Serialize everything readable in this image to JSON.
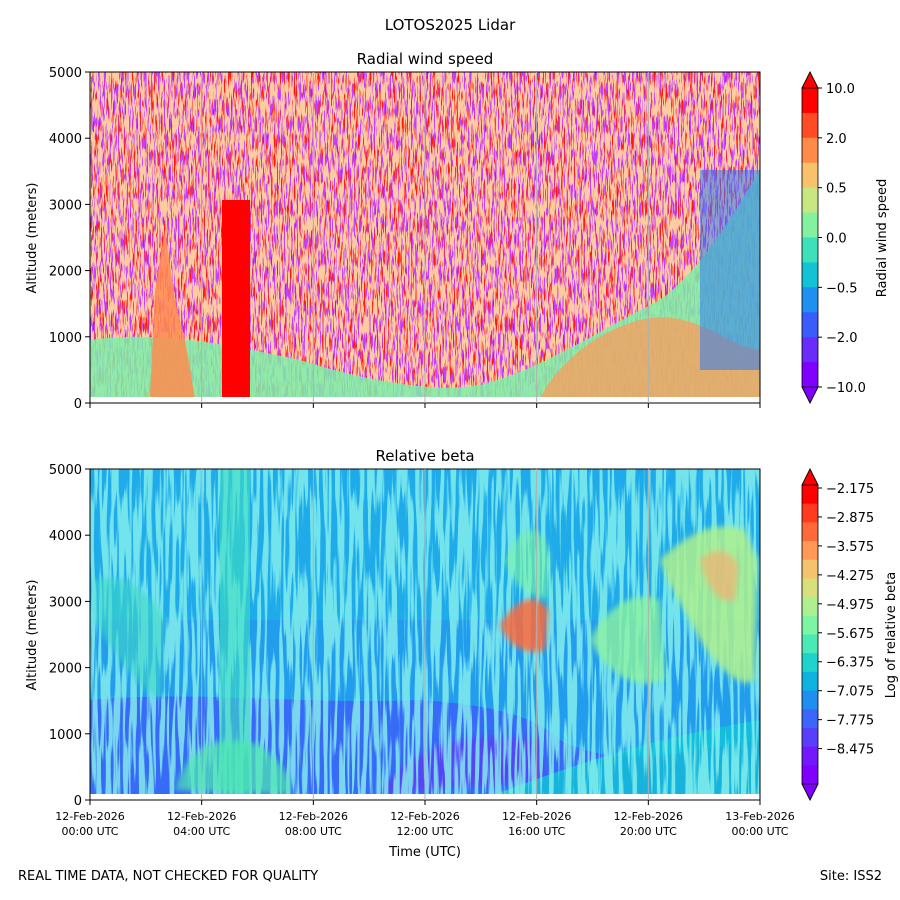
{
  "suptitle": "LOTOS2025 Lidar",
  "footer": {
    "left": "REAL TIME DATA, NOT CHECKED FOR QUALITY",
    "right": "Site: ISS2"
  },
  "chart_data": [
    {
      "type": "heatmap",
      "title": "Radial wind speed",
      "ylabel": "Altitude (meters)",
      "xlabel": "",
      "ylim": [
        0,
        5000
      ],
      "yticks": [
        0,
        1000,
        2000,
        3000,
        4000,
        5000
      ],
      "xlim_hours": [
        0,
        24
      ],
      "xticks_hours": [
        0,
        4,
        8,
        12,
        16,
        20,
        24
      ],
      "xtick_labels_shown": false,
      "colorbar": {
        "label": "Radial wind speed",
        "tick_labels": [
          "10.0",
          "2.0",
          "0.5",
          "0.0",
          "−0.5",
          "−2.0",
          "−10.0"
        ],
        "levels_top_to_bottom": [
          "#ff0000",
          "#ff4b26",
          "#ff8a4a",
          "#f7c26b",
          "#c8e682",
          "#83f1a0",
          "#3de0b8",
          "#14c2d6",
          "#1e90f0",
          "#3a5cf9",
          "#6a2cf9",
          "#8000ff"
        ]
      },
      "description_regions": [
        {
          "name": "noisy-high-values",
          "value": "mostly > 2.0"
        },
        {
          "name": "low-level-layer",
          "value": "-0.5 to 0.5"
        }
      ]
    },
    {
      "type": "heatmap",
      "title": "Relative beta",
      "ylabel": "Altitude (meters)",
      "xlabel": "Time (UTC)",
      "ylim": [
        0,
        5000
      ],
      "yticks": [
        0,
        1000,
        2000,
        3000,
        4000,
        5000
      ],
      "xlim_hours": [
        0,
        24
      ],
      "xticks_hours": [
        0,
        4,
        8,
        12,
        16,
        20,
        24
      ],
      "xtick_labels": [
        [
          "12-Feb-2026",
          "00:00 UTC"
        ],
        [
          "12-Feb-2026",
          "04:00 UTC"
        ],
        [
          "12-Feb-2026",
          "08:00 UTC"
        ],
        [
          "12-Feb-2026",
          "12:00 UTC"
        ],
        [
          "12-Feb-2026",
          "16:00 UTC"
        ],
        [
          "12-Feb-2026",
          "20:00 UTC"
        ],
        [
          "13-Feb-2026",
          "00:00 UTC"
        ]
      ],
      "colorbar": {
        "label": "Log of relative beta",
        "tick_labels": [
          "−2.175",
          "−2.875",
          "−3.575",
          "−4.275",
          "−4.975",
          "−5.675",
          "−6.375",
          "−7.075",
          "−7.775",
          "−8.475"
        ],
        "levels_top_to_bottom": [
          "#ff0000",
          "#ff3a1e",
          "#ff6a3a",
          "#ff9955",
          "#f5c36d",
          "#d8e07d",
          "#aef08f",
          "#7ef5a2",
          "#4ce9b6",
          "#21d1cc",
          "#0fb3e0",
          "#1f8ef0",
          "#3b66f8",
          "#5a3ffa",
          "#7318fb",
          "#8000ff"
        ]
      }
    }
  ]
}
